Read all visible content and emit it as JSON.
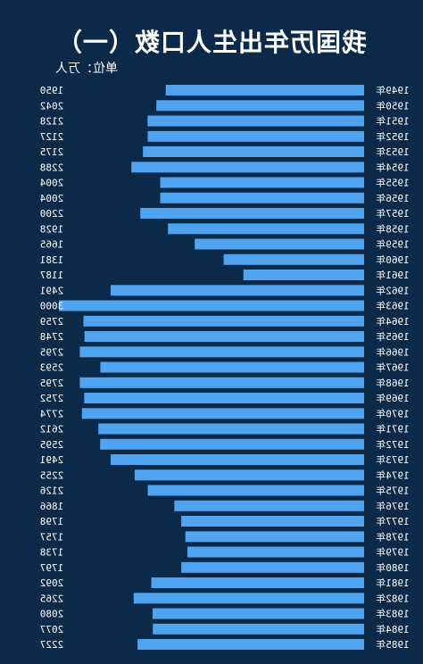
{
  "title": "我国历年出生人口数（一）",
  "unit_label": "单位：万人",
  "chart_data": {
    "type": "bar",
    "orientation": "horizontal",
    "title": "我国历年出生人口数（一）",
    "unit": "单位：万人",
    "mirrored": true,
    "categories": [
      "1949年",
      "1950年",
      "1951年",
      "1952年",
      "1953年",
      "1954年",
      "1955年",
      "1956年",
      "1957年",
      "1958年",
      "1959年",
      "1960年",
      "1961年",
      "1962年",
      "1963年",
      "1964年",
      "1965年",
      "1966年",
      "1967年",
      "1968年",
      "1969年",
      "1970年",
      "1971年",
      "1972年",
      "1973年",
      "1974年",
      "1975年",
      "1976年",
      "1977年",
      "1978年",
      "1979年",
      "1980年",
      "1981年",
      "1982年",
      "1983年",
      "1984年",
      "1985年"
    ],
    "values": [
      1950,
      2042,
      2128,
      2127,
      2175,
      2288,
      2004,
      2004,
      2200,
      1928,
      1665,
      1381,
      1187,
      2491,
      3000,
      2759,
      2748,
      2795,
      2593,
      2795,
      2752,
      2774,
      2612,
      2595,
      2491,
      2255,
      2126,
      1866,
      1798,
      1757,
      1738,
      1797,
      2092,
      2265,
      2080,
      2077,
      2227
    ],
    "xlim": [
      0,
      3000
    ],
    "bar_color": "#4fa3ef"
  }
}
